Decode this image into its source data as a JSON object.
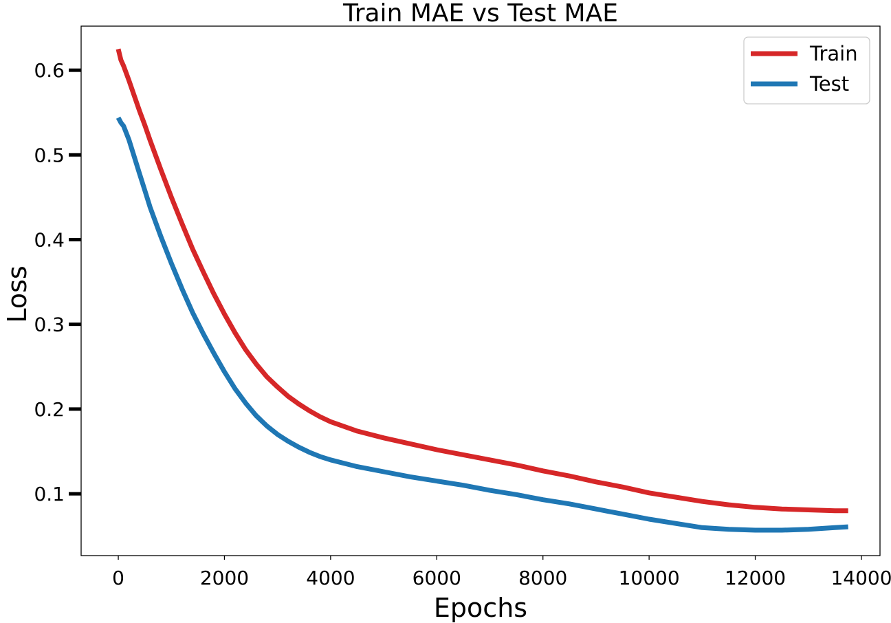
{
  "chart_data": {
    "type": "line",
    "title": "Train MAE vs Test MAE",
    "xlabel": "Epochs",
    "ylabel": "Loss",
    "xlim": [
      -700,
      14350
    ],
    "ylim": [
      0.027,
      0.652
    ],
    "xticks": [
      0,
      2000,
      4000,
      6000,
      8000,
      10000,
      12000,
      14000
    ],
    "xtick_labels": [
      "0",
      "2000",
      "4000",
      "6000",
      "8000",
      "10000",
      "12000",
      "14000"
    ],
    "yticks": [
      0.1,
      0.2,
      0.3,
      0.4,
      0.5,
      0.6
    ],
    "ytick_labels": [
      "0.1",
      "0.2",
      "0.3",
      "0.4",
      "0.5",
      "0.6"
    ],
    "grid": false,
    "legend": "top-right",
    "series": [
      {
        "name": "Train",
        "color": "#d62728",
        "x": [
          0,
          50,
          100,
          200,
          300,
          400,
          500,
          600,
          800,
          1000,
          1200,
          1400,
          1600,
          1800,
          2000,
          2200,
          2400,
          2600,
          2800,
          3000,
          3200,
          3400,
          3600,
          3800,
          4000,
          4500,
          5000,
          5500,
          6000,
          6500,
          7000,
          7500,
          8000,
          8500,
          9000,
          9500,
          10000,
          10500,
          11000,
          11500,
          12000,
          12500,
          13000,
          13500,
          13750
        ],
        "y": [
          0.625,
          0.612,
          0.605,
          0.588,
          0.57,
          0.552,
          0.535,
          0.517,
          0.483,
          0.45,
          0.419,
          0.389,
          0.362,
          0.336,
          0.312,
          0.29,
          0.27,
          0.253,
          0.238,
          0.226,
          0.215,
          0.206,
          0.198,
          0.191,
          0.185,
          0.174,
          0.166,
          0.159,
          0.152,
          0.146,
          0.14,
          0.134,
          0.127,
          0.121,
          0.114,
          0.108,
          0.101,
          0.096,
          0.091,
          0.087,
          0.084,
          0.082,
          0.081,
          0.08,
          0.08
        ]
      },
      {
        "name": "Test",
        "color": "#1f77b4",
        "x": [
          0,
          50,
          100,
          200,
          300,
          400,
          500,
          600,
          800,
          1000,
          1200,
          1400,
          1600,
          1800,
          2000,
          2200,
          2400,
          2600,
          2800,
          3000,
          3200,
          3400,
          3600,
          3800,
          4000,
          4500,
          5000,
          5500,
          6000,
          6500,
          7000,
          7500,
          8000,
          8500,
          9000,
          9500,
          10000,
          10500,
          11000,
          11500,
          12000,
          12250,
          12500,
          13000,
          13500,
          13750
        ],
        "y": [
          0.544,
          0.538,
          0.534,
          0.518,
          0.498,
          0.478,
          0.458,
          0.438,
          0.404,
          0.372,
          0.342,
          0.314,
          0.289,
          0.266,
          0.244,
          0.224,
          0.207,
          0.192,
          0.18,
          0.17,
          0.162,
          0.155,
          0.149,
          0.144,
          0.14,
          0.132,
          0.126,
          0.12,
          0.115,
          0.11,
          0.104,
          0.099,
          0.093,
          0.088,
          0.082,
          0.076,
          0.07,
          0.065,
          0.06,
          0.058,
          0.057,
          0.057,
          0.057,
          0.058,
          0.06,
          0.061
        ]
      }
    ]
  }
}
